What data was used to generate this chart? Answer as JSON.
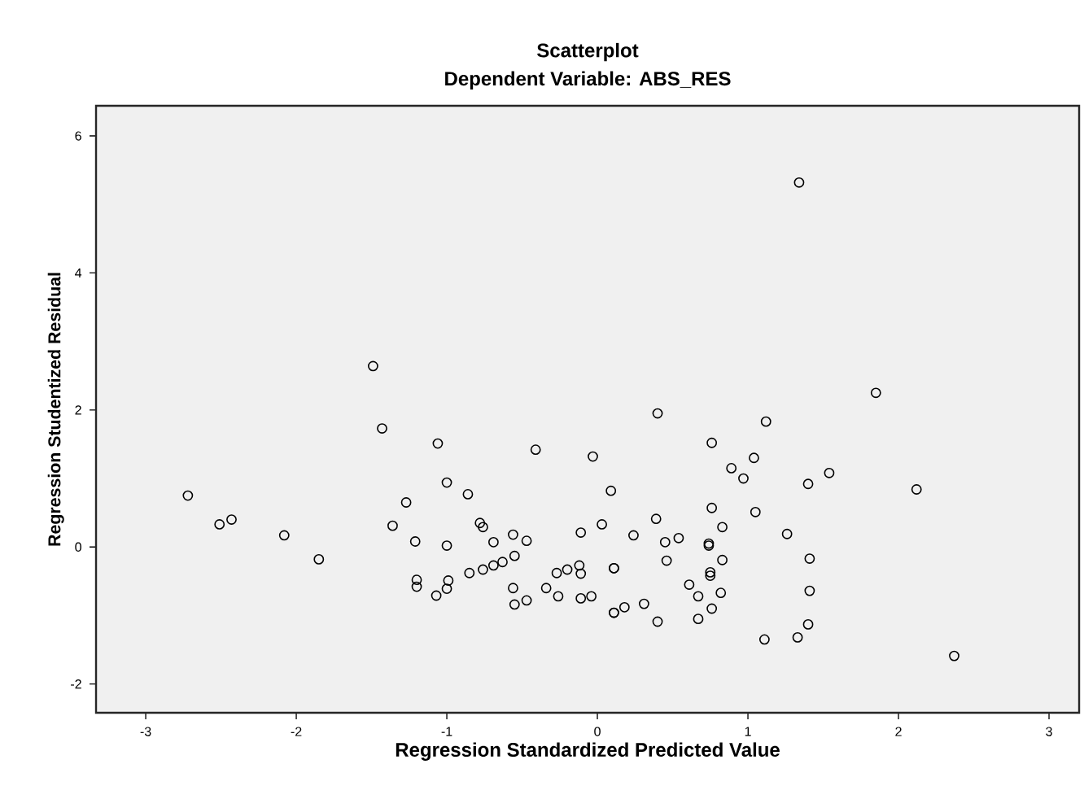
{
  "chart_data": {
    "type": "scatter",
    "title": "Scatterplot",
    "subtitle": "Dependent Variable: ABS_RES",
    "xlabel": "Regression Standardized Predicted Value",
    "ylabel": "Regression Studentized Residual",
    "xlim": [
      -3.33,
      3.2
    ],
    "ylim": [
      -2.42,
      6.44
    ],
    "xticks": [
      -3,
      -2,
      -1,
      0,
      1,
      2,
      3
    ],
    "yticks": [
      -2,
      0,
      2,
      4,
      6
    ],
    "grid": false,
    "marker": "circle",
    "series": [
      {
        "color": "#000000",
        "x": [
          -2.72,
          -2.51,
          -2.43,
          -2.08,
          -1.85,
          -1.49,
          -1.43,
          -1.27,
          -1.36,
          -1.21,
          -1.2,
          -1.2,
          -1.06,
          -1.0,
          -1.0,
          -0.99,
          -1.0,
          -1.07,
          -0.86,
          -0.78,
          -0.76,
          -0.69,
          -0.85,
          -0.76,
          -0.69,
          -0.63,
          -0.56,
          -0.47,
          -0.55,
          -0.56,
          -0.55,
          -0.47,
          -0.41,
          -0.34,
          1.34,
          1.85,
          0.4,
          1.12,
          0.76,
          -0.03,
          1.04,
          0.89,
          0.97,
          1.54,
          1.4,
          2.12,
          0.09,
          0.76,
          1.05,
          0.39,
          0.03,
          -0.11,
          0.24,
          0.83,
          1.26,
          0.45,
          0.54,
          0.74,
          0.74,
          0.46,
          0.83,
          1.41,
          -0.27,
          -0.2,
          -0.12,
          -0.11,
          0.11,
          0.11,
          0.75,
          0.75,
          -0.26,
          -0.11,
          -0.04,
          0.61,
          0.67,
          0.82,
          1.41,
          0.18,
          0.11,
          0.11,
          0.31,
          0.4,
          0.67,
          0.76,
          1.11,
          1.33,
          1.4,
          2.37
        ],
        "values": [
          0.75,
          0.33,
          0.4,
          0.17,
          -0.18,
          2.64,
          1.73,
          0.65,
          0.31,
          0.08,
          -0.48,
          -0.58,
          1.51,
          0.94,
          0.02,
          -0.49,
          -0.61,
          -0.71,
          0.77,
          0.35,
          0.29,
          0.07,
          -0.38,
          -0.33,
          -0.27,
          -0.22,
          0.18,
          0.09,
          -0.13,
          -0.6,
          -0.84,
          -0.78,
          1.42,
          -0.6,
          5.32,
          2.25,
          1.95,
          1.83,
          1.52,
          1.32,
          1.3,
          1.15,
          1.0,
          1.08,
          0.92,
          0.84,
          0.82,
          0.57,
          0.51,
          0.41,
          0.33,
          0.21,
          0.17,
          0.29,
          0.19,
          0.07,
          0.13,
          0.05,
          0.02,
          -0.2,
          -0.19,
          -0.17,
          -0.38,
          -0.33,
          -0.27,
          -0.39,
          -0.31,
          -0.31,
          -0.37,
          -0.42,
          -0.72,
          -0.75,
          -0.72,
          -0.55,
          -0.72,
          -0.67,
          -0.64,
          -0.88,
          -0.96,
          -0.96,
          -0.83,
          -1.09,
          -1.05,
          -0.9,
          -1.35,
          -1.32,
          -1.13,
          -1.59
        ]
      }
    ]
  }
}
